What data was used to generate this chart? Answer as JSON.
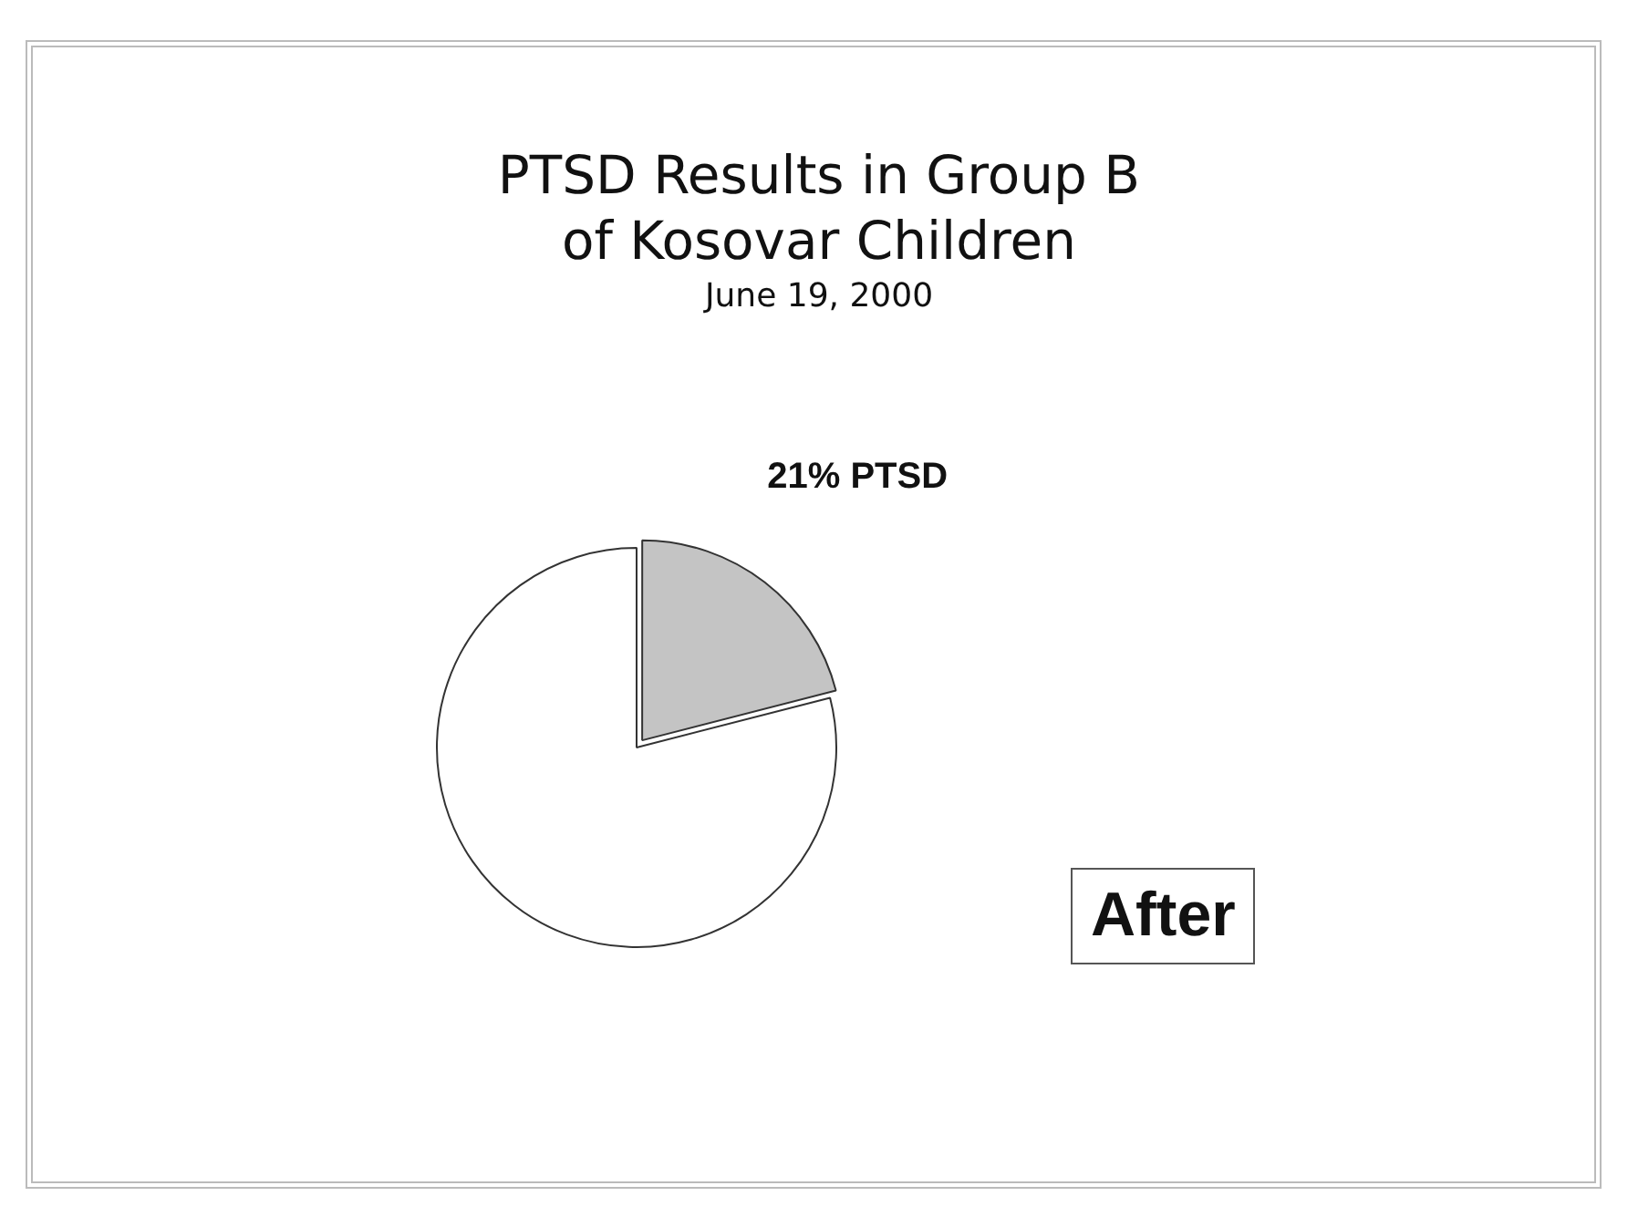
{
  "chart_data": {
    "type": "pie",
    "title": "PTSD Results in Group B\nof Kosovar Children",
    "subtitle": "June 19, 2000",
    "categories": [
      null,
      null
    ],
    "values": [
      21,
      79
    ],
    "colors": [
      "#c4c4c4",
      "#ffffff"
    ],
    "value_labels": [
      "21% PTSD",
      null
    ],
    "annotations": [
      "After"
    ],
    "legend": false
  }
}
